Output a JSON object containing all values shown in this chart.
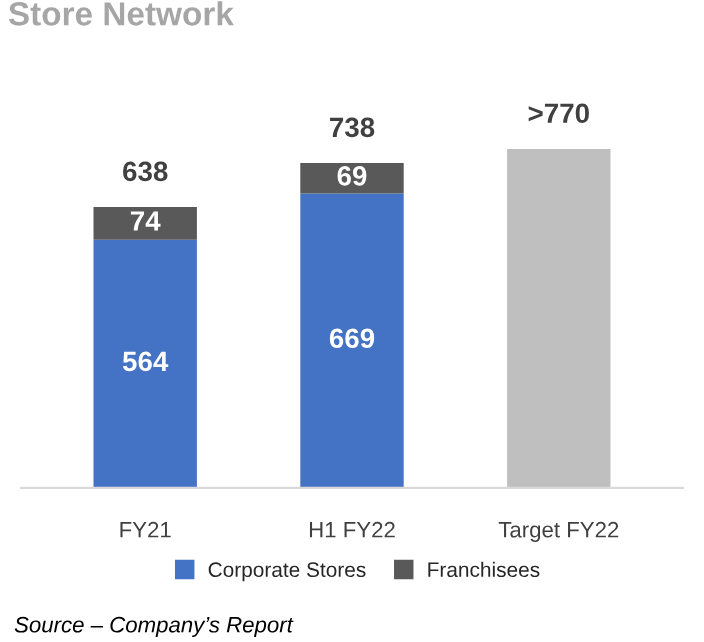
{
  "chart_data": {
    "type": "bar",
    "title": "Store Network",
    "stacked": true,
    "categories": [
      "FY21",
      "H1 FY22",
      "Target FY22"
    ],
    "series": [
      {
        "name": "Corporate Stores",
        "color": "#4472c4",
        "values": [
          564,
          669,
          null
        ],
        "value_labels": [
          "564",
          "669",
          null
        ]
      },
      {
        "name": "Franchisees",
        "color": "#595959",
        "values": [
          74,
          69,
          null
        ],
        "value_labels": [
          "74",
          "69",
          null
        ]
      },
      {
        "color": "#bfbfbf",
        "values": [
          null,
          null,
          770
        ]
      }
    ],
    "totals": [
      "638",
      "738",
      ">770"
    ],
    "legend": "bottom",
    "grid": false,
    "annotations": [
      "Source – Company’s Report"
    ]
  }
}
